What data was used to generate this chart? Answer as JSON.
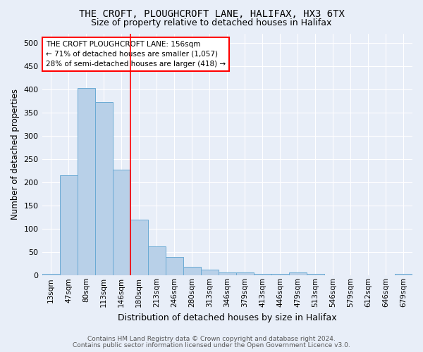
{
  "title1": "THE CROFT, PLOUGHCROFT LANE, HALIFAX, HX3 6TX",
  "title2": "Size of property relative to detached houses in Halifax",
  "xlabel": "Distribution of detached houses by size in Halifax",
  "ylabel": "Number of detached properties",
  "footer1": "Contains HM Land Registry data © Crown copyright and database right 2024.",
  "footer2": "Contains public sector information licensed under the Open Government Licence v3.0.",
  "categories": [
    "13sqm",
    "47sqm",
    "80sqm",
    "113sqm",
    "146sqm",
    "180sqm",
    "213sqm",
    "246sqm",
    "280sqm",
    "313sqm",
    "346sqm",
    "379sqm",
    "413sqm",
    "446sqm",
    "479sqm",
    "513sqm",
    "546sqm",
    "579sqm",
    "612sqm",
    "646sqm",
    "679sqm"
  ],
  "values": [
    3,
    215,
    403,
    373,
    228,
    120,
    63,
    40,
    18,
    13,
    7,
    7,
    4,
    4,
    6,
    4,
    1,
    0,
    0,
    1,
    3
  ],
  "bar_color": "#b8d0e8",
  "bar_edge_color": "#6aaad4",
  "background_color": "#e8eef8",
  "grid_color": "#ffffff",
  "red_line_x": 4.5,
  "annotation_text": "THE CROFT PLOUGHCROFT LANE: 156sqm\n← 71% of detached houses are smaller (1,057)\n28% of semi-detached houses are larger (418) →",
  "ylim": [
    0,
    520
  ],
  "yticks": [
    0,
    50,
    100,
    150,
    200,
    250,
    300,
    350,
    400,
    450,
    500
  ],
  "title1_fontsize": 10,
  "title2_fontsize": 9,
  "ylabel_fontsize": 8.5,
  "xlabel_fontsize": 9,
  "tick_fontsize": 8,
  "xtick_fontsize": 7.5,
  "annotation_fontsize": 7.5,
  "footer_fontsize": 6.5
}
